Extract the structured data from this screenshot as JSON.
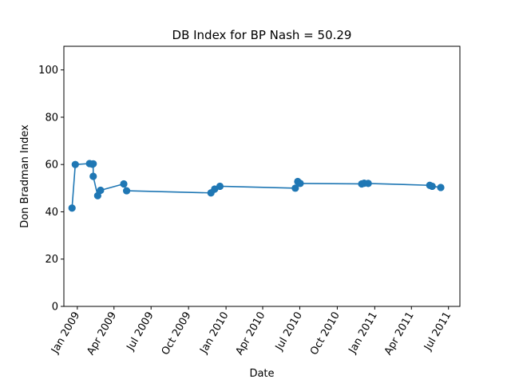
{
  "chart_data": {
    "type": "line",
    "title": "DB Index for BP Nash = 50.29",
    "xlabel": "Date",
    "ylabel": "Don Bradman Index",
    "ylim": [
      0,
      110
    ],
    "xlim": [
      "2008-11-29",
      "2011-07-29"
    ],
    "yticks": [
      0,
      20,
      40,
      60,
      80,
      100
    ],
    "xticks": [
      {
        "date": "2009-01-01",
        "label": "Jan 2009"
      },
      {
        "date": "2009-04-01",
        "label": "Apr 2009"
      },
      {
        "date": "2009-07-01",
        "label": "Jul 2009"
      },
      {
        "date": "2009-10-01",
        "label": "Oct 2009"
      },
      {
        "date": "2010-01-01",
        "label": "Jan 2010"
      },
      {
        "date": "2010-04-01",
        "label": "Apr 2010"
      },
      {
        "date": "2010-07-01",
        "label": "Jul 2010"
      },
      {
        "date": "2010-10-01",
        "label": "Oct 2010"
      },
      {
        "date": "2011-01-01",
        "label": "Jan 2011"
      },
      {
        "date": "2011-04-01",
        "label": "Apr 2011"
      },
      {
        "date": "2011-07-01",
        "label": "Jul 2011"
      }
    ],
    "grid": false,
    "line_color": "#1f77b4",
    "marker": "circle",
    "series": [
      {
        "x": [
          "2008-12-19",
          "2008-12-27",
          "2009-01-31",
          "2009-02-07",
          "2009-02-09",
          "2009-02-09",
          "2009-02-20",
          "2009-02-27",
          "2009-04-25",
          "2009-05-02",
          "2009-11-25",
          "2009-12-04",
          "2009-12-17",
          "2010-06-20",
          "2010-06-26",
          "2010-07-02",
          "2010-11-30",
          "2010-12-06",
          "2010-12-16",
          "2011-05-16",
          "2011-05-22",
          "2011-06-12"
        ],
        "y": [
          41.6,
          60.0,
          60.4,
          60.1,
          60.3,
          55.0,
          46.8,
          49.1,
          51.8,
          48.9,
          48.0,
          49.6,
          50.8,
          50.0,
          52.8,
          52.0,
          51.8,
          52.1,
          52.0,
          51.2,
          50.8,
          50.29
        ]
      }
    ]
  }
}
